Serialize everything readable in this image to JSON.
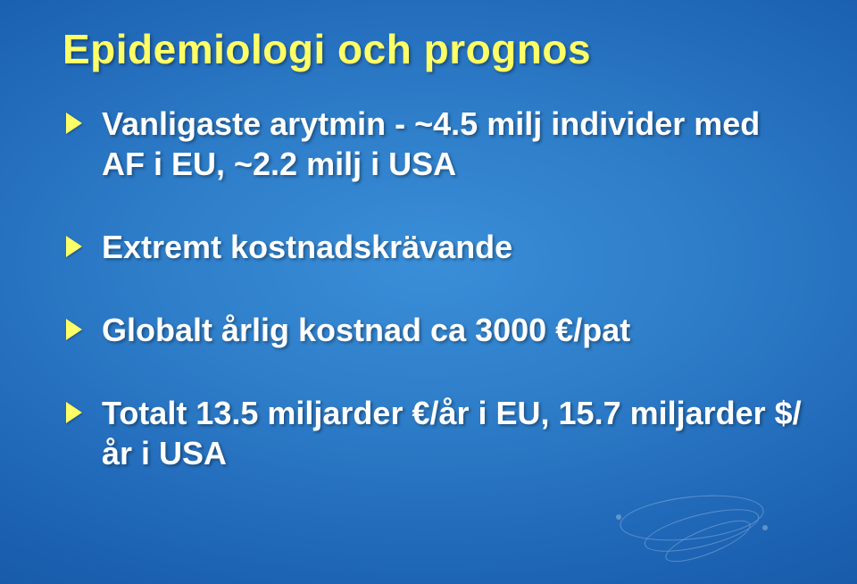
{
  "title": "Epidemiologi och prognos",
  "bullets": [
    "Vanligaste arytmin - ~4.5 milj individer med AF i EU, ~2.2 milj i USA",
    "Extremt kostnadskrävande",
    "Globalt årlig kostnad ca 3000 €/pat",
    "Totalt 13.5 miljarder €/år i EU, 15.7 miljarder $/år i USA"
  ]
}
